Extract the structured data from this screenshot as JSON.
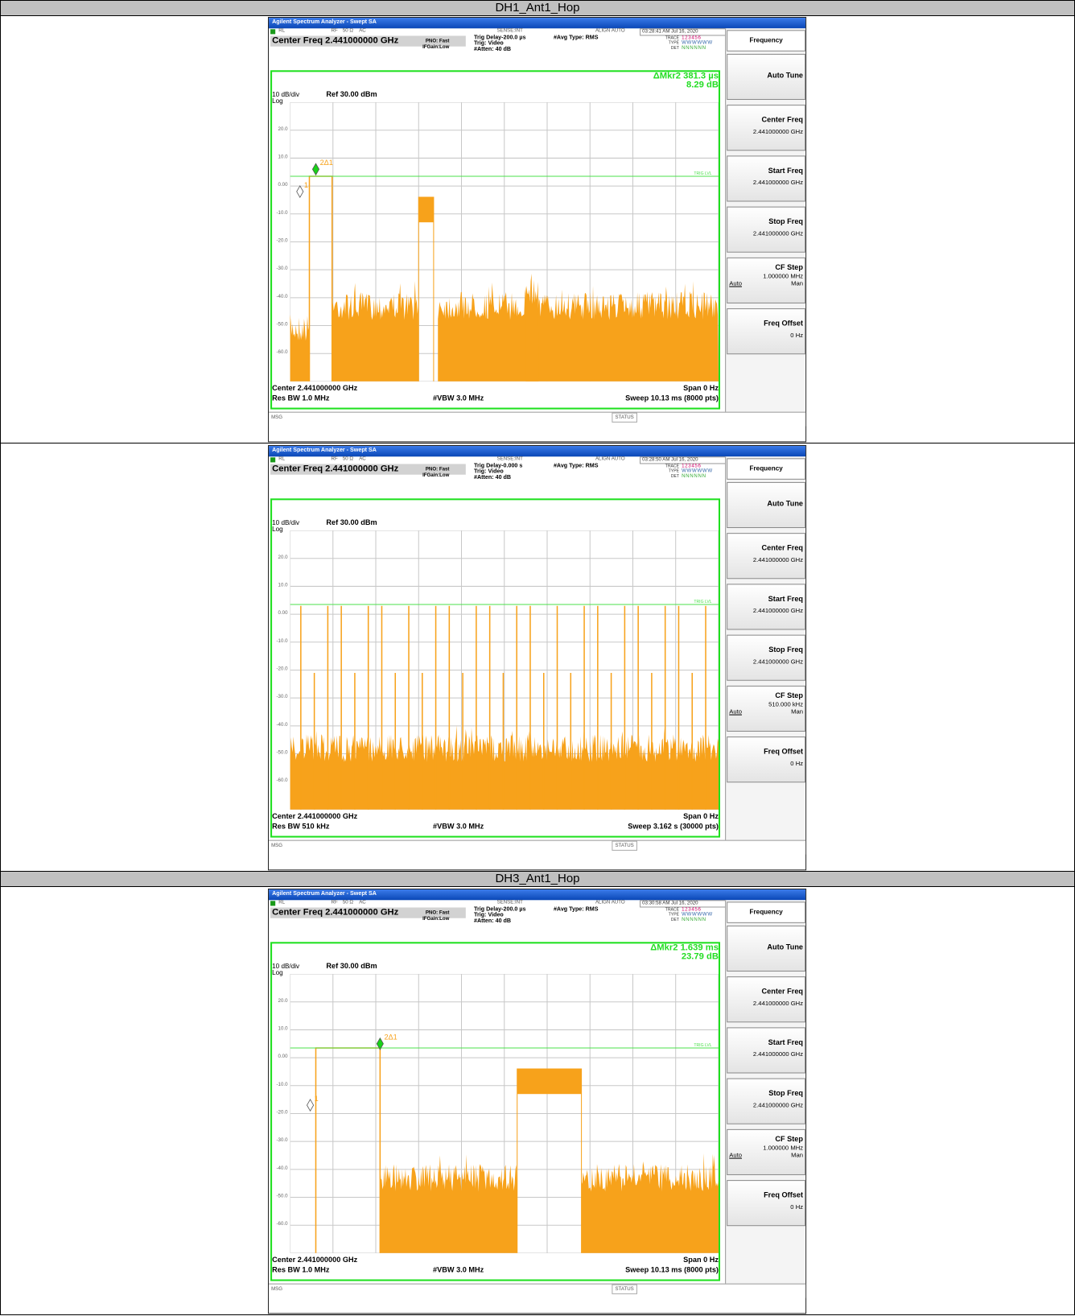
{
  "table": {
    "sections": [
      {
        "title": "DH1_Ant1_Hop",
        "screens": [
          {
            "window_title": "Agilent Spectrum Analyzer - Swept SA",
            "status": {
              "rl": "RL",
              "rf": "RF",
              "imp": "50 Ω",
              "ac": "AC",
              "sense": "SENSE:INT",
              "align": "ALIGN AUTO",
              "time": "03:28:41 AM Jul 16, 2020"
            },
            "center_freq": "Center Freq 2.441000000 GHz",
            "pno": "PNO: Fast",
            "ifgain": "IFGain:Low",
            "trig_delay": "Trig Delay-200.0 µs",
            "trig": "Trig: Video",
            "atten": "#Atten: 40 dB",
            "avg_type": "#Avg Type: RMS",
            "trace_labels": [
              "TRACE",
              "TYPE",
              "DET"
            ],
            "trace_values": [
              "1 2 3 4 5 6",
              "W W W W W W",
              "N N N N N N"
            ],
            "marker_readout": [
              "ΔMkr2 381.3 µs",
              "8.29 dB"
            ],
            "scale": "10 dB/div",
            "scale_type": "Log",
            "ref": "Ref 30.00 dBm",
            "y_labels": [
              "20.0",
              "10.0",
              "0.00",
              "-10.0",
              "-20.0",
              "-30.0",
              "-40.0",
              "-50.0",
              "-60.0"
            ],
            "trig_lvl": "TRIG LVL",
            "marker_labels": [
              "1",
              "2Δ1"
            ],
            "footer": {
              "center": "Center 2.441000000 GHz",
              "span": "Span 0 Hz",
              "res_bw": "Res BW 1.0 MHz",
              "vbw": "#VBW 3.0 MHz",
              "sweep": "Sweep  10.13 ms (8000 pts)"
            },
            "msg": "MSG",
            "status_label": "STATUS",
            "softkeys": {
              "title": "Frequency",
              "keys": [
                {
                  "label": "Auto Tune"
                },
                {
                  "label": "Center Freq",
                  "value": "2.441000000 GHz"
                },
                {
                  "label": "Start Freq",
                  "value": "2.441000000 GHz"
                },
                {
                  "label": "Stop Freq",
                  "value": "2.441000000 GHz"
                },
                {
                  "label": "CF Step",
                  "value": "1.000000 MHz",
                  "auto": "Auto",
                  "man": "Man"
                },
                {
                  "label": "Freq Offset",
                  "value": "0 Hz"
                }
              ]
            }
          },
          {
            "window_title": "Agilent Spectrum Analyzer - Swept SA",
            "status": {
              "rl": "RL",
              "rf": "RF",
              "imp": "50 Ω",
              "ac": "AC",
              "sense": "SENSE:INT",
              "align": "ALIGN AUTO",
              "time": "03:28:50 AM Jul 16, 2020"
            },
            "center_freq": "Center Freq 2.441000000 GHz",
            "pno": "PNO: Fast",
            "ifgain": "IFGain:Low",
            "trig_delay": "Trig Delay-0.000 s",
            "trig": "Trig: Video",
            "atten": "#Atten: 40 dB",
            "avg_type": "#Avg Type: RMS",
            "trace_labels": [
              "TRACE",
              "TYPE",
              "DET"
            ],
            "trace_values": [
              "1 2 3 4 5 6",
              "W W W W W W",
              "N N N N N N"
            ],
            "scale": "10 dB/div",
            "scale_type": "Log",
            "ref": "Ref 30.00 dBm",
            "y_labels": [
              "20.0",
              "10.0",
              "0.00",
              "-10.0",
              "-20.0",
              "-30.0",
              "-40.0",
              "-50.0",
              "-60.0"
            ],
            "trig_lvl": "TRIG LVL",
            "footer": {
              "center": "Center 2.441000000 GHz",
              "span": "Span 0 Hz",
              "res_bw": "Res BW 510 kHz",
              "vbw": "#VBW 3.0 MHz",
              "sweep": "Sweep  3.162 s (30000 pts)"
            },
            "msg": "MSG",
            "status_label": "STATUS",
            "softkeys": {
              "title": "Frequency",
              "keys": [
                {
                  "label": "Auto Tune"
                },
                {
                  "label": "Center Freq",
                  "value": "2.441000000 GHz"
                },
                {
                  "label": "Start Freq",
                  "value": "2.441000000 GHz"
                },
                {
                  "label": "Stop Freq",
                  "value": "2.441000000 GHz"
                },
                {
                  "label": "CF Step",
                  "value": "510.000 kHz",
                  "auto": "Auto",
                  "man": "Man"
                },
                {
                  "label": "Freq Offset",
                  "value": "0 Hz"
                }
              ]
            }
          }
        ]
      },
      {
        "title": "DH3_Ant1_Hop",
        "screens": [
          {
            "window_title": "Agilent Spectrum Analyzer - Swept SA",
            "status": {
              "rl": "RL",
              "rf": "RF",
              "imp": "50 Ω",
              "ac": "AC",
              "sense": "SENSE:INT",
              "align": "ALIGN AUTO",
              "time": "03:30:58 AM Jul 16, 2020"
            },
            "center_freq": "Center Freq 2.441000000 GHz",
            "pno": "PNO: Fast",
            "ifgain": "IFGain:Low",
            "trig_delay": "Trig Delay-200.0 µs",
            "trig": "Trig: Video",
            "atten": "#Atten: 40 dB",
            "avg_type": "#Avg Type: RMS",
            "trace_labels": [
              "TRACE",
              "TYPE",
              "DET"
            ],
            "trace_values": [
              "1 2 3 4 5 6",
              "W W W W W W",
              "N N N N N N"
            ],
            "marker_readout": [
              "ΔMkr2 1.639 ms",
              "23.79 dB"
            ],
            "scale": "10 dB/div",
            "scale_type": "Log",
            "ref": "Ref 30.00 dBm",
            "y_labels": [
              "20.0",
              "10.0",
              "0.00",
              "-10.0",
              "-20.0",
              "-30.0",
              "-40.0",
              "-50.0",
              "-60.0"
            ],
            "trig_lvl": "TRIG LVL",
            "marker_labels": [
              "1",
              "2Δ1"
            ],
            "footer": {
              "center": "Center 2.441000000 GHz",
              "span": "Span 0 Hz",
              "res_bw": "Res BW 1.0 MHz",
              "vbw": "#VBW 3.0 MHz",
              "sweep": "Sweep  10.13 ms (8000 pts)"
            },
            "msg": "MSG",
            "status_label": "STATUS",
            "softkeys": {
              "title": "Frequency",
              "keys": [
                {
                  "label": "Auto Tune"
                },
                {
                  "label": "Center Freq",
                  "value": "2.441000000 GHz"
                },
                {
                  "label": "Start Freq",
                  "value": "2.441000000 GHz"
                },
                {
                  "label": "Stop Freq",
                  "value": "2.441000000 GHz"
                },
                {
                  "label": "CF Step",
                  "value": "1.000000 MHz",
                  "auto": "Auto",
                  "man": "Man"
                },
                {
                  "label": "Freq Offset",
                  "value": "0 Hz"
                }
              ]
            }
          }
        ]
      }
    ]
  }
}
